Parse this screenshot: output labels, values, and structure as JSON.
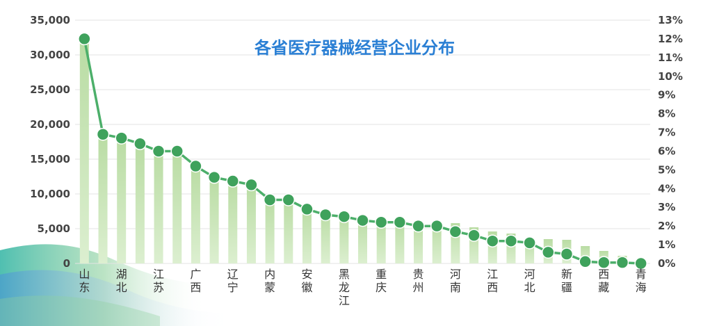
{
  "chart_data": {
    "type": "bar+line",
    "title": "各省医疗器械经营企业分布",
    "categories": [
      "山东",
      "湖北",
      "江苏",
      "广西",
      "辽宁",
      "内蒙",
      "安徽",
      "黑龙江",
      "重庆",
      "贵州",
      "河南",
      "江西",
      "河北",
      "新疆",
      "西藏",
      "青海"
    ],
    "labeled_category_positions": [
      0,
      2,
      4,
      6,
      8,
      10,
      12,
      14,
      16,
      18,
      20,
      22,
      24,
      26,
      28,
      30
    ],
    "bar_count": 31,
    "bar_values": [
      32300,
      18800,
      18200,
      17200,
      16300,
      16300,
      14000,
      12500,
      12000,
      11300,
      9400,
      9300,
      8100,
      7500,
      7100,
      6800,
      6500,
      6200,
      6100,
      5900,
      5800,
      5200,
      4600,
      4300,
      3600,
      3500,
      3400,
      2500,
      1800,
      1100,
      500
    ],
    "line_series": {
      "values": [
        12.0,
        6.9,
        6.7,
        6.4,
        6.0,
        6.0,
        5.2,
        4.6,
        4.4,
        4.2,
        3.4,
        3.4,
        2.9,
        2.6,
        2.5,
        2.3,
        2.2,
        2.2,
        2.0,
        2.0,
        1.7,
        1.5,
        1.2,
        1.2,
        1.1,
        0.6,
        0.5,
        0.1,
        0.05,
        0.05,
        0.0
      ]
    },
    "y_left": {
      "ylim": [
        0,
        35000
      ],
      "ticks": [
        "0",
        "5,000",
        "10,000",
        "15,000",
        "20,000",
        "25,000",
        "30,000",
        "35,000"
      ]
    },
    "y_right": {
      "ylim": [
        0,
        13
      ],
      "ticks": [
        "0%",
        "1%",
        "2%",
        "3%",
        "4%",
        "5%",
        "6%",
        "7%",
        "8%",
        "9%",
        "10%",
        "11%",
        "12%",
        "13%"
      ]
    },
    "grid": true,
    "colors": {
      "bar": "#c9e4b8",
      "bar_top": "#a9d48e",
      "line": "#4caf6a",
      "marker": "#3fa25c",
      "grid": "#e3e3e3",
      "title": "#2a7fd4",
      "wave_green": "#8fd19e",
      "wave_teal": "#3cb8a8",
      "wave_blue": "#4a90d9"
    }
  }
}
